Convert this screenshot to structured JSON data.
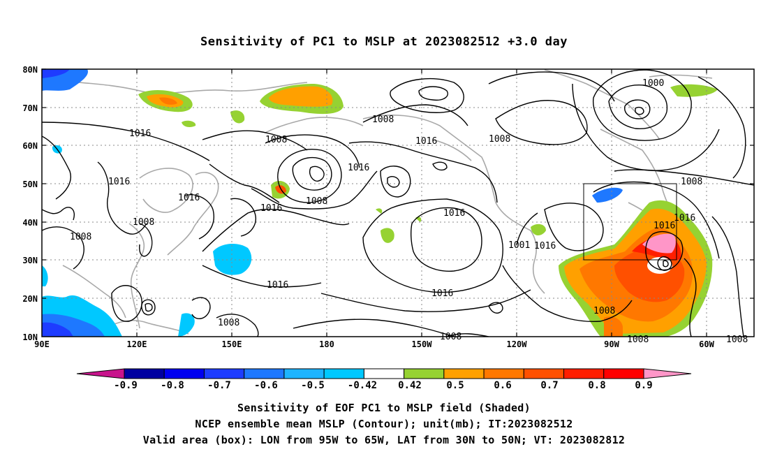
{
  "title": "Sensitivity of PC1 to MSLP at 2023082512 +3.0 day",
  "lat_labels": [
    "80N",
    "70N",
    "60N",
    "50N",
    "40N",
    "30N",
    "20N",
    "10N"
  ],
  "lon_labels": [
    "90E",
    "120E",
    "150E",
    "180",
    "150W",
    "120W",
    "90W",
    "60W"
  ],
  "contour_labels": [
    {
      "text": "1016",
      "id": "c1"
    },
    {
      "text": "1016",
      "id": "c2"
    },
    {
      "text": "1016",
      "id": "c3"
    },
    {
      "text": "1008",
      "id": "c4"
    },
    {
      "text": "1008",
      "id": "c5"
    },
    {
      "text": "1008",
      "id": "c6"
    },
    {
      "text": "1016",
      "id": "c7"
    },
    {
      "text": "1008",
      "id": "c8"
    },
    {
      "text": "1008",
      "id": "c9"
    },
    {
      "text": "1016",
      "id": "c10"
    },
    {
      "text": "1016",
      "id": "c11"
    },
    {
      "text": "1008",
      "id": "c12"
    },
    {
      "text": "1000",
      "id": "c13"
    },
    {
      "text": "1008",
      "id": "c14"
    },
    {
      "text": "1016",
      "id": "c15"
    },
    {
      "text": "1016",
      "id": "c16"
    },
    {
      "text": "1016",
      "id": "c17"
    },
    {
      "text": "1016",
      "id": "c18"
    },
    {
      "text": "1016",
      "id": "c19"
    },
    {
      "text": "1008",
      "id": "c20"
    },
    {
      "text": "1008",
      "id": "c21"
    },
    {
      "text": "1008",
      "id": "c22"
    },
    {
      "text": "1008",
      "id": "c23"
    },
    {
      "text": "1008",
      "id": "c24"
    },
    {
      "text": "1001",
      "id": "c25"
    },
    {
      "text": "1016",
      "id": "c26"
    }
  ],
  "colorbar": {
    "labels": [
      "-0.9",
      "-0.8",
      "-0.7",
      "-0.6",
      "-0.5",
      "-0.42",
      "0.42",
      "0.5",
      "0.6",
      "0.7",
      "0.8",
      "0.9"
    ],
    "colors": [
      "#c8148c",
      "#0000a0",
      "#0000f0",
      "#1e3cff",
      "#1e78ff",
      "#1eb4ff",
      "#00c8ff",
      "#ffffff",
      "#96d232",
      "#ffa000",
      "#ff7800",
      "#ff5000",
      "#ff1e00",
      "#ff0000",
      "#ff96c8"
    ]
  },
  "captions": [
    "Sensitivity of EOF PC1 to MSLP field (Shaded)",
    "NCEP ensemble mean MSLP (Contour); unit(mb); IT:2023082512",
    "Valid area (box): LON from 95W to 65W, LAT from 30N to 50N; VT: 2023082812"
  ]
}
